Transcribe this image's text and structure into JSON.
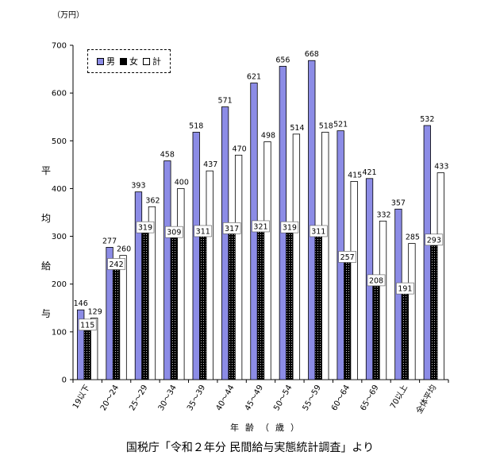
{
  "chart_data": {
    "type": "bar",
    "unit_label": "（万円）",
    "ylabel": "平均給与",
    "xlabel": "年齢（歳）",
    "source": "国税庁「令和２年分 民間給与実態統計調査」より",
    "ylim": [
      0,
      700
    ],
    "yticks": [
      "0",
      "100",
      "200",
      "300",
      "400",
      "500",
      "600",
      "700"
    ],
    "categories": [
      "19以下",
      "20～24",
      "25～29",
      "30～34",
      "35～39",
      "40～44",
      "45～49",
      "50～54",
      "55～59",
      "60～64",
      "65～69",
      "70以上",
      "全体平均"
    ],
    "series": [
      {
        "name": "男",
        "color": "#8c8ce6",
        "values": [
          146,
          277,
          393,
          458,
          518,
          571,
          621,
          656,
          668,
          521,
          421,
          357,
          532
        ]
      },
      {
        "name": "女",
        "color": "#000000",
        "values": [
          115,
          242,
          319,
          309,
          311,
          317,
          321,
          319,
          311,
          257,
          208,
          191,
          293
        ]
      },
      {
        "name": "計",
        "color": "#ffffff",
        "values": [
          129,
          260,
          362,
          400,
          437,
          470,
          498,
          514,
          518,
          415,
          332,
          285,
          433
        ]
      }
    ],
    "legend": {
      "position": "top-left"
    },
    "grid": false
  }
}
